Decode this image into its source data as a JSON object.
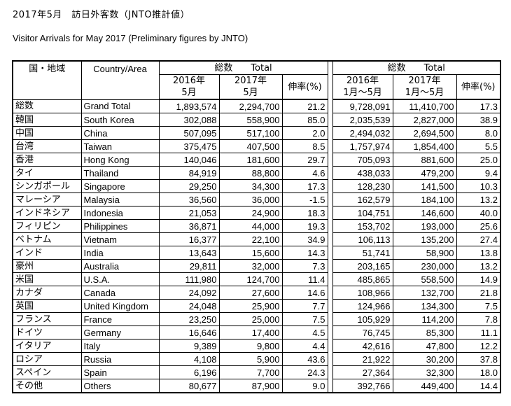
{
  "title": "2017年5月　訪日外客数（JNTO推計値）",
  "subtitle": "Visitor Arrivals for May 2017 (Preliminary figures by JNTO)",
  "headers": {
    "region_jp": "国・地域",
    "region_en": "Country/Area",
    "group_month": "総数　　Total",
    "group_cumulative": "総数　　Total",
    "m2016_line1": "2016年",
    "m2016_line2": "5月",
    "m2017_line1": "2017年",
    "m2017_line2": "5月",
    "growth": "伸率(%)",
    "c2016_line1": "2016年",
    "c2016_line2": "1月～5月",
    "c2017_line1": "2017年",
    "c2017_line2": "1月～5月",
    "growth2": "伸率(%)"
  },
  "rows": [
    {
      "jp": "総数",
      "en": "Grand Total",
      "m2016": "1,893,574",
      "m2017": "2,294,700",
      "g1": "21.2",
      "c2016": "9,728,091",
      "c2017": "11,410,700",
      "g2": "17.3"
    },
    {
      "jp": "韓国",
      "en": "South Korea",
      "m2016": "302,088",
      "m2017": "558,900",
      "g1": "85.0",
      "c2016": "2,035,539",
      "c2017": "2,827,000",
      "g2": "38.9"
    },
    {
      "jp": "中国",
      "en": "China",
      "m2016": "507,095",
      "m2017": "517,100",
      "g1": "2.0",
      "c2016": "2,494,032",
      "c2017": "2,694,500",
      "g2": "8.0"
    },
    {
      "jp": "台湾",
      "en": "Taiwan",
      "m2016": "375,475",
      "m2017": "407,500",
      "g1": "8.5",
      "c2016": "1,757,974",
      "c2017": "1,854,400",
      "g2": "5.5"
    },
    {
      "jp": "香港",
      "en": "Hong Kong",
      "m2016": "140,046",
      "m2017": "181,600",
      "g1": "29.7",
      "c2016": "705,093",
      "c2017": "881,600",
      "g2": "25.0"
    },
    {
      "jp": "タイ",
      "en": "Thailand",
      "m2016": "84,919",
      "m2017": "88,800",
      "g1": "4.6",
      "c2016": "438,033",
      "c2017": "479,200",
      "g2": "9.4"
    },
    {
      "jp": "シンガポール",
      "en": "Singapore",
      "m2016": "29,250",
      "m2017": "34,300",
      "g1": "17.3",
      "c2016": "128,230",
      "c2017": "141,500",
      "g2": "10.3"
    },
    {
      "jp": "マレーシア",
      "en": "Malaysia",
      "m2016": "36,560",
      "m2017": "36,000",
      "g1": "-1.5",
      "c2016": "162,579",
      "c2017": "184,100",
      "g2": "13.2"
    },
    {
      "jp": "インドネシア",
      "en": "Indonesia",
      "m2016": "21,053",
      "m2017": "24,900",
      "g1": "18.3",
      "c2016": "104,751",
      "c2017": "146,600",
      "g2": "40.0"
    },
    {
      "jp": "フィリピン",
      "en": "Philippines",
      "m2016": "36,871",
      "m2017": "44,000",
      "g1": "19.3",
      "c2016": "153,702",
      "c2017": "193,000",
      "g2": "25.6"
    },
    {
      "jp": "ベトナム",
      "en": "Vietnam",
      "m2016": "16,377",
      "m2017": "22,100",
      "g1": "34.9",
      "c2016": "106,113",
      "c2017": "135,200",
      "g2": "27.4"
    },
    {
      "jp": "インド",
      "en": "India",
      "m2016": "13,643",
      "m2017": "15,600",
      "g1": "14.3",
      "c2016": "51,741",
      "c2017": "58,900",
      "g2": "13.8"
    },
    {
      "jp": "豪州",
      "en": "Australia",
      "m2016": "29,811",
      "m2017": "32,000",
      "g1": "7.3",
      "c2016": "203,165",
      "c2017": "230,000",
      "g2": "13.2"
    },
    {
      "jp": "米国",
      "en": "U.S.A.",
      "m2016": "111,980",
      "m2017": "124,700",
      "g1": "11.4",
      "c2016": "485,865",
      "c2017": "558,500",
      "g2": "14.9"
    },
    {
      "jp": "カナダ",
      "en": "Canada",
      "m2016": "24,092",
      "m2017": "27,600",
      "g1": "14.6",
      "c2016": "108,966",
      "c2017": "132,700",
      "g2": "21.8"
    },
    {
      "jp": "英国",
      "en": "United Kingdom",
      "m2016": "24,048",
      "m2017": "25,900",
      "g1": "7.7",
      "c2016": "124,966",
      "c2017": "134,300",
      "g2": "7.5"
    },
    {
      "jp": "フランス",
      "en": "France",
      "m2016": "23,250",
      "m2017": "25,000",
      "g1": "7.5",
      "c2016": "105,929",
      "c2017": "114,200",
      "g2": "7.8"
    },
    {
      "jp": "ドイツ",
      "en": "Germany",
      "m2016": "16,646",
      "m2017": "17,400",
      "g1": "4.5",
      "c2016": "76,745",
      "c2017": "85,300",
      "g2": "11.1"
    },
    {
      "jp": "イタリア",
      "en": "Italy",
      "m2016": "9,389",
      "m2017": "9,800",
      "g1": "4.4",
      "c2016": "42,616",
      "c2017": "47,800",
      "g2": "12.2"
    },
    {
      "jp": "ロシア",
      "en": "Russia",
      "m2016": "4,108",
      "m2017": "5,900",
      "g1": "43.6",
      "c2016": "21,922",
      "c2017": "30,200",
      "g2": "37.8"
    },
    {
      "jp": "スペイン",
      "en": "Spain",
      "m2016": "6,196",
      "m2017": "7,700",
      "g1": "24.3",
      "c2016": "27,364",
      "c2017": "32,300",
      "g2": "18.0"
    },
    {
      "jp": "その他",
      "en": "Others",
      "m2016": "80,677",
      "m2017": "87,900",
      "g1": "9.0",
      "c2016": "392,766",
      "c2017": "449,400",
      "g2": "14.4"
    }
  ]
}
